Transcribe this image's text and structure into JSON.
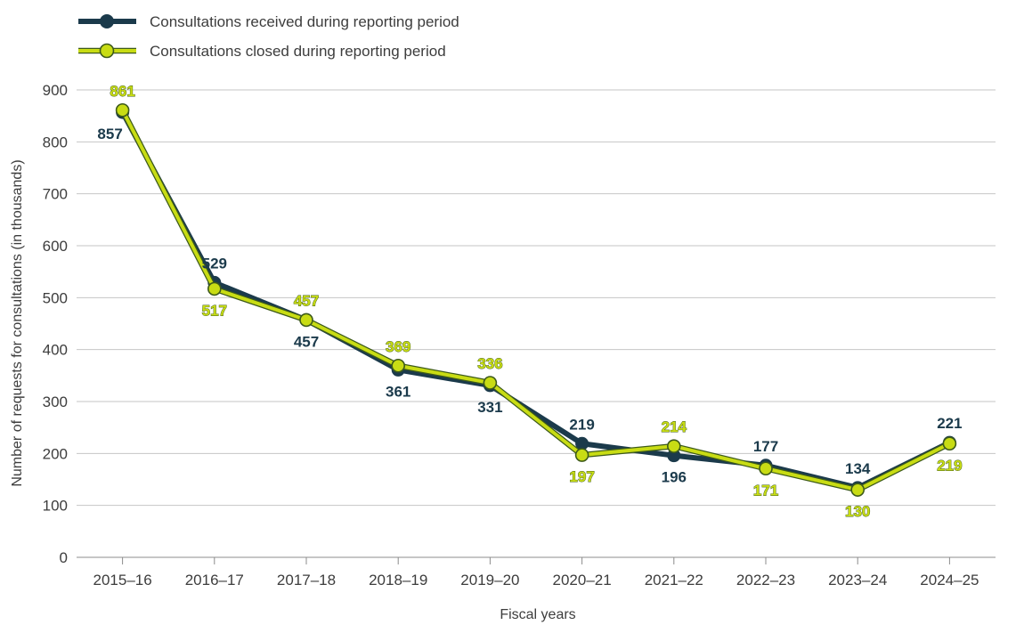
{
  "chart_data": {
    "type": "line",
    "categories": [
      "2015–16",
      "2016–17",
      "2017–18",
      "2018–19",
      "2019–20",
      "2020–21",
      "2021–22",
      "2022–23",
      "2023–24",
      "2024–25"
    ],
    "series": [
      {
        "name": "Consultations received during reporting period",
        "values": [
          857,
          529,
          457,
          361,
          331,
          219,
          196,
          177,
          134,
          221
        ],
        "color": "#1b3a4b"
      },
      {
        "name": "Consultations closed during reporting period",
        "values": [
          861,
          517,
          457,
          369,
          336,
          197,
          214,
          171,
          130,
          219
        ],
        "color": "#c8dc14"
      }
    ],
    "xlabel": "Fiscal years",
    "ylabel": "Number of requests for consultations (in thousands)",
    "ylim": [
      0,
      900
    ],
    "yticks": [
      0,
      100,
      200,
      300,
      400,
      500,
      600,
      700,
      800,
      900
    ],
    "grid": true,
    "legend": "top-left"
  }
}
